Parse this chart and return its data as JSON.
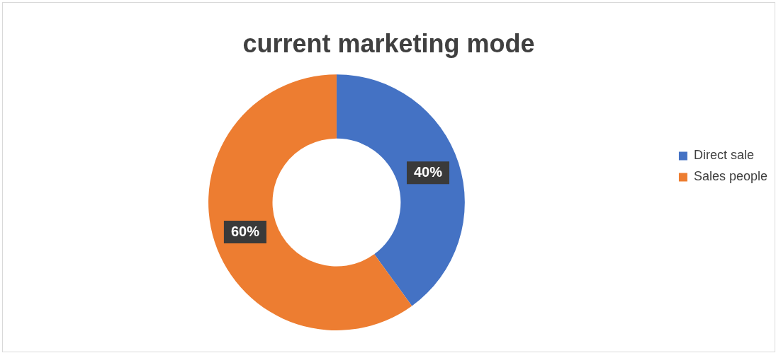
{
  "chart_data": {
    "type": "donut",
    "title": "current marketing mode",
    "categories": [
      "Direct sale",
      "Sales people"
    ],
    "values": [
      40,
      60
    ],
    "colors": [
      "#4472c4",
      "#ed7d31"
    ],
    "value_labels": [
      "40%",
      "60%"
    ],
    "legend": "right"
  }
}
